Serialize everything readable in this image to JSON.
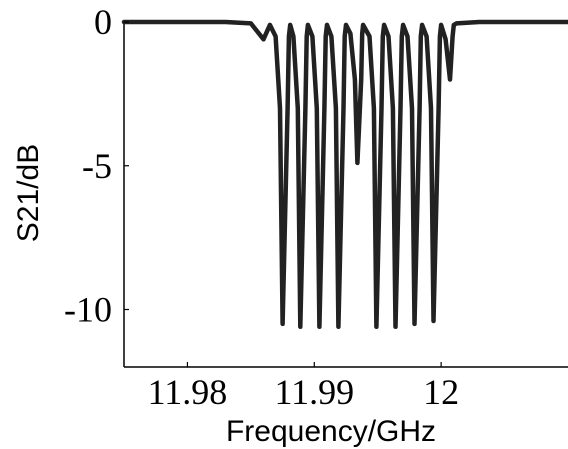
{
  "chart_data": {
    "type": "line",
    "title": "",
    "xlabel": "Frequency/GHz",
    "ylabel": "S21/dB",
    "xlim": [
      11.975,
      12.01
    ],
    "ylim": [
      -12,
      0
    ],
    "xticks": [
      11.98,
      11.99,
      12
    ],
    "xtick_labels": [
      "11.98",
      "11.99",
      "12"
    ],
    "yticks": [
      0,
      -5,
      -10
    ],
    "ytick_labels": [
      "0",
      "-5",
      "-10"
    ],
    "grid": false,
    "legend": "none",
    "colors": {
      "line": "#222222",
      "axes": "#000000"
    },
    "series": [
      {
        "x": [
          11.975,
          11.983,
          11.985,
          11.986,
          11.9865,
          11.98695,
          11.9873,
          11.9875,
          11.9879,
          11.988,
          11.9881,
          11.98835,
          11.9887,
          11.9889,
          11.9893,
          11.9894,
          11.9895,
          11.98985,
          11.9902,
          11.9904,
          11.9908,
          11.9909,
          11.991,
          11.99135,
          11.9917,
          11.9919,
          11.9923,
          11.9924,
          11.9925,
          11.99285,
          11.9932,
          11.9934,
          11.9937,
          11.99378,
          11.99385,
          11.99435,
          11.9947,
          11.9949,
          11.9953,
          11.9954,
          11.9955,
          11.99585,
          11.9962,
          11.9964,
          11.9968,
          11.9969,
          11.997,
          11.99735,
          11.9977,
          11.9979,
          11.9983,
          11.9984,
          11.9985,
          11.99885,
          11.9992,
          11.9994,
          11.9998,
          11.9999,
          12.0,
          12.00035,
          12.0007,
          12.0009,
          12.001,
          12.0012,
          12.003,
          12.01
        ],
        "y": [
          0,
          0,
          -0.05,
          -0.6,
          -0.1,
          -0.5,
          -3.0,
          -10.5,
          -3.0,
          -0.5,
          -0.1,
          -0.5,
          -3.0,
          -10.6,
          -3.0,
          -0.5,
          -0.1,
          -0.5,
          -3.0,
          -10.6,
          -3.0,
          -0.5,
          -0.1,
          -0.5,
          -3.0,
          -10.6,
          -3.0,
          -0.5,
          -0.1,
          -0.4,
          -2.0,
          -4.9,
          -2.0,
          -0.4,
          -0.1,
          -0.5,
          -3.0,
          -10.6,
          -3.0,
          -0.5,
          -0.1,
          -0.5,
          -3.0,
          -10.6,
          -3.0,
          -0.5,
          -0.1,
          -0.5,
          -3.0,
          -10.5,
          -3.0,
          -0.5,
          -0.1,
          -0.5,
          -3.0,
          -10.4,
          -3.0,
          -0.5,
          -0.1,
          -0.6,
          -2.0,
          -0.5,
          -0.1,
          -0.05,
          0,
          0
        ]
      }
    ]
  }
}
